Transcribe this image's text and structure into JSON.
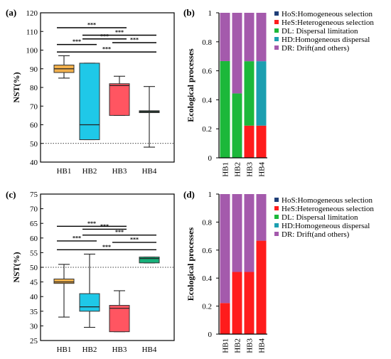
{
  "chart_data": [
    {
      "panel": "(a)",
      "type": "box",
      "ylabel": "NST(%)",
      "ylim": [
        40,
        120
      ],
      "yticks": [
        40,
        50,
        60,
        70,
        80,
        90,
        100,
        110,
        120
      ],
      "categories": [
        "HB1",
        "HB2",
        "HB3",
        "HB4"
      ],
      "colors": [
        "#f2b04c",
        "#1fc8e8",
        "#ff5561",
        "#1d5a3b"
      ],
      "boxes": [
        {
          "min": 85,
          "q1": 88,
          "median": 90,
          "q3": 92,
          "max": 97
        },
        {
          "min": 52,
          "q1": 52,
          "median": 60,
          "q3": 93,
          "max": 93
        },
        {
          "min": 65,
          "q1": 65,
          "median": 81,
          "q3": 82,
          "max": 86
        },
        {
          "min": 48,
          "q1": 66.5,
          "median": 67,
          "q3": 67.5,
          "max": 80.5
        }
      ],
      "reference_line": 50,
      "significance": [
        {
          "from": "HB1",
          "to": "HB2",
          "label": "***",
          "level": 103
        },
        {
          "from": "HB1",
          "to": "HB3",
          "label": "***",
          "level": 112
        },
        {
          "from": "HB2",
          "to": "HB3",
          "label": "***",
          "level": 106
        },
        {
          "from": "HB2",
          "to": "HB4",
          "label": "***",
          "level": 108
        },
        {
          "from": "HB3",
          "to": "HB4",
          "label": "***",
          "level": 104
        },
        {
          "from": "HB1",
          "to": "HB4",
          "label": "***",
          "level": 99
        }
      ]
    },
    {
      "panel": "(b)",
      "type": "stacked_bar",
      "ylabel": "Ecological processes",
      "ylim": [
        0,
        1
      ],
      "yticks": [
        "0",
        "0.2",
        "0.4",
        "0.6",
        "0.8",
        "1"
      ],
      "categories": [
        "HB1",
        "HB2",
        "HB3",
        "HB4"
      ],
      "series": [
        {
          "name": "HoS:Homogeneous selection",
          "color": "#1f3f78",
          "values": [
            0,
            0,
            0,
            0
          ]
        },
        {
          "name": "HeS:Heterogeneous selection",
          "color": "#ff1c1c",
          "values": [
            0,
            0,
            0.222,
            0.222
          ]
        },
        {
          "name": "DL: Dispersal limitation",
          "color": "#1cb83a",
          "values": [
            0.667,
            0.444,
            0.444,
            0
          ]
        },
        {
          "name": "HD:Homogeneous dispersal",
          "color": "#1c9fb0",
          "values": [
            0,
            0,
            0,
            0.444
          ]
        },
        {
          "name": "DR: Drift(and others)",
          "color": "#a45aac",
          "values": [
            0.333,
            0.556,
            0.334,
            0.334
          ]
        }
      ],
      "legend": "top-right"
    },
    {
      "panel": "(c)",
      "type": "box",
      "ylabel": "NST(%)",
      "ylim": [
        25,
        75
      ],
      "yticks": [
        25,
        30,
        35,
        40,
        45,
        50,
        55,
        60,
        65,
        70,
        75
      ],
      "categories": [
        "HB1",
        "HB2",
        "HB3",
        "HB4"
      ],
      "colors": [
        "#f2b04c",
        "#1fc8e8",
        "#ff5561",
        "#17b07a"
      ],
      "boxes": [
        {
          "min": 33,
          "q1": 44.5,
          "median": 45,
          "q3": 46,
          "max": 51
        },
        {
          "min": 29.5,
          "q1": 35,
          "median": 36.5,
          "q3": 41,
          "max": 54.5
        },
        {
          "min": 28,
          "q1": 28,
          "median": 36,
          "q3": 37,
          "max": 42
        },
        {
          "min": 51.5,
          "q1": 51.5,
          "median": 53,
          "q3": 53.5,
          "max": 53.5
        }
      ],
      "reference_line": 50,
      "significance": [
        {
          "from": "HB1",
          "to": "HB2",
          "label": "***",
          "level": 59
        },
        {
          "from": "HB1",
          "to": "HB3",
          "label": "***",
          "level": 64
        },
        {
          "from": "HB2",
          "to": "HB3",
          "label": "***",
          "level": 63
        },
        {
          "from": "HB2",
          "to": "HB4",
          "label": "***",
          "level": 61
        },
        {
          "from": "HB3",
          "to": "HB4",
          "label": "***",
          "level": 58.5
        },
        {
          "from": "HB1",
          "to": "HB4",
          "label": "***",
          "level": 56
        }
      ]
    },
    {
      "panel": "(d)",
      "type": "stacked_bar",
      "ylabel": "Ecological processes",
      "ylim": [
        0,
        1
      ],
      "yticks": [
        "0",
        "0.2",
        "0.4",
        "0.6",
        "0.8",
        "1"
      ],
      "categories": [
        "HB1",
        "HB2",
        "HB3",
        "HB4"
      ],
      "series": [
        {
          "name": "HoS:Homogeneous selection",
          "color": "#1f3f78",
          "values": [
            0,
            0,
            0,
            0
          ]
        },
        {
          "name": "HeS:Heterogeneous selection",
          "color": "#ff1c1c",
          "values": [
            0.222,
            0.444,
            0.444,
            0.667
          ]
        },
        {
          "name": "DL: Dispersal limitation",
          "color": "#1cb83a",
          "values": [
            0,
            0,
            0,
            0
          ]
        },
        {
          "name": "HD:Homogeneous dispersal",
          "color": "#1c9fb0",
          "values": [
            0,
            0,
            0,
            0
          ]
        },
        {
          "name": "DR: Drift(and others)",
          "color": "#a45aac",
          "values": [
            0.778,
            0.556,
            0.556,
            0.333
          ]
        }
      ],
      "legend": "top-right"
    }
  ]
}
